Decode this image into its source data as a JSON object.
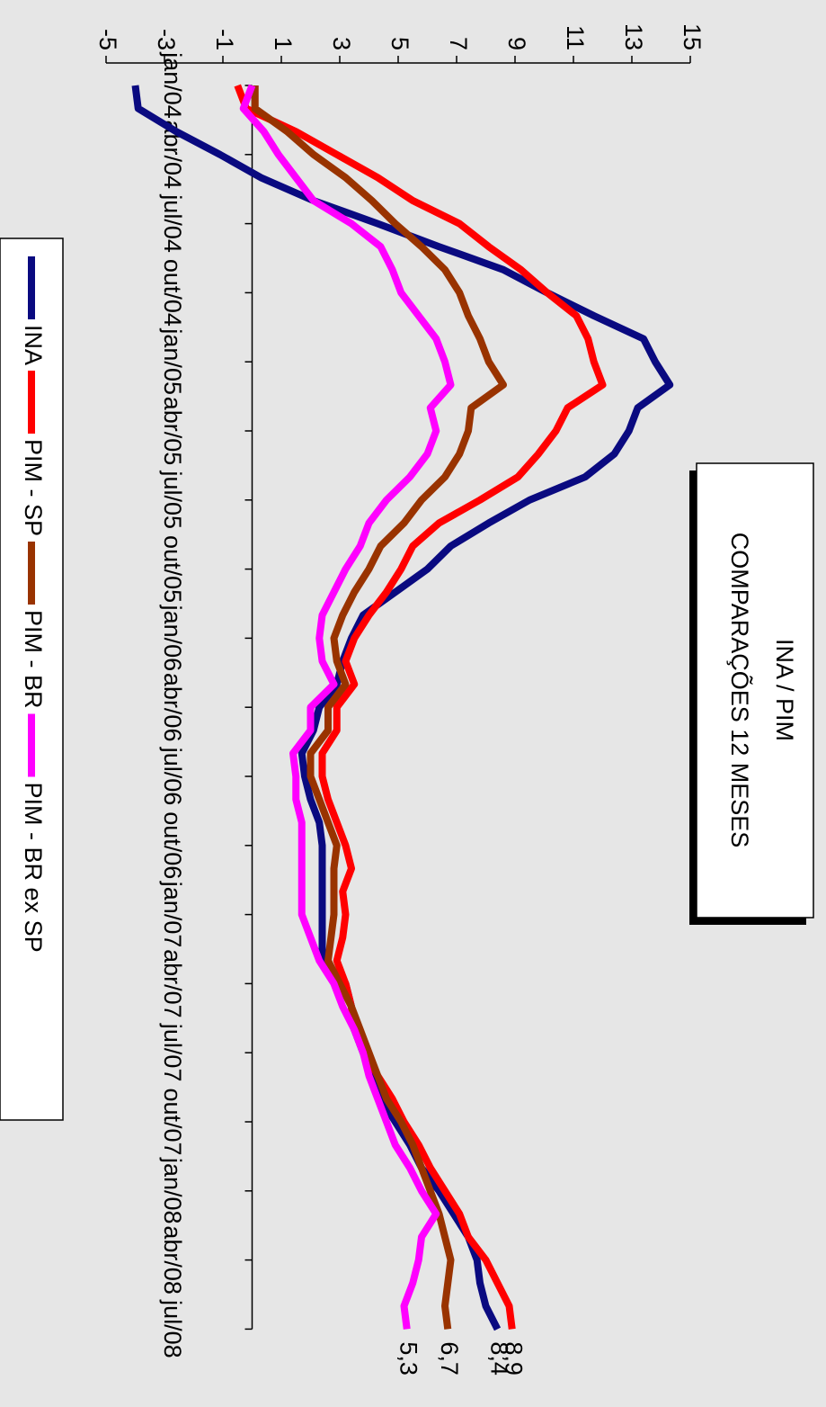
{
  "chart_data": {
    "type": "line",
    "title": "INA / PIM",
    "subtitle": "COMPARAÇÕES 12 MESES",
    "categories": [
      "jan/04",
      null,
      null,
      "abr/04",
      null,
      null,
      "jul/04",
      null,
      null,
      "out/04",
      null,
      null,
      "jan/05",
      null,
      null,
      "abr/05",
      null,
      null,
      "jul/05",
      null,
      null,
      "out/05",
      null,
      null,
      "jan/06",
      null,
      null,
      "abr/06",
      null,
      null,
      "jul/06",
      null,
      null,
      "out/06",
      null,
      null,
      "jan/07",
      null,
      null,
      "abr/07",
      null,
      null,
      "jul/07",
      null,
      null,
      "out/07",
      null,
      null,
      "jan/08",
      null,
      null,
      "abr/08",
      null,
      null,
      "jul/08"
    ],
    "series": [
      {
        "name": "INA",
        "color": "#0a0a80",
        "values": [
          -4.0,
          -3.9,
          -2.6,
          -1.1,
          0.3,
          2.1,
          4.3,
          6.4,
          8.6,
          10.1,
          11.7,
          13.4,
          13.8,
          14.3,
          13.2,
          12.9,
          12.4,
          11.4,
          9.5,
          8.1,
          6.8,
          6.0,
          4.9,
          3.8,
          3.4,
          3.1,
          2.9,
          2.3,
          2.1,
          1.7,
          1.8,
          2.0,
          2.3,
          2.4,
          2.4,
          2.4,
          2.4,
          2.4,
          2.4,
          3.2,
          3.4,
          3.5,
          3.8,
          4.1,
          4.4,
          4.9,
          5.4,
          5.8,
          6.4,
          6.9,
          7.4,
          7.7,
          7.8,
          8.0,
          8.4
        ],
        "value_labels": [
          null,
          null,
          null,
          null,
          null,
          null,
          null,
          null,
          null,
          null,
          null,
          null,
          null,
          null,
          null,
          null,
          null,
          null,
          null,
          null,
          null,
          null,
          null,
          null,
          null,
          null,
          null,
          null,
          null,
          null,
          null,
          null,
          null,
          null,
          null,
          null,
          null,
          null,
          null,
          null,
          null,
          null,
          null,
          null,
          null,
          null,
          null,
          null,
          null,
          null,
          null,
          null,
          null,
          null,
          "8,4"
        ]
      },
      {
        "name": "PIM - SP",
        "color": "#ff0000",
        "values": [
          -0.5,
          -0.2,
          1.5,
          2.9,
          4.3,
          5.5,
          7.1,
          8.1,
          9.2,
          10.1,
          11.1,
          11.5,
          11.7,
          12.0,
          10.8,
          10.4,
          9.8,
          9.1,
          7.8,
          6.4,
          5.5,
          5.1,
          4.6,
          4.0,
          3.5,
          3.2,
          3.5,
          2.9,
          2.9,
          2.4,
          2.4,
          2.6,
          2.9,
          3.2,
          3.4,
          3.1,
          3.2,
          3.1,
          2.9,
          3.2,
          3.4,
          3.5,
          3.9,
          4.3,
          4.8,
          5.2,
          5.7,
          6.1,
          6.6,
          7.1,
          7.4,
          8.0,
          8.4,
          8.8,
          8.9
        ],
        "value_labels": [
          null,
          null,
          null,
          null,
          null,
          null,
          null,
          null,
          null,
          null,
          null,
          null,
          null,
          null,
          null,
          null,
          null,
          null,
          null,
          null,
          null,
          null,
          null,
          null,
          null,
          null,
          null,
          null,
          null,
          null,
          null,
          null,
          null,
          null,
          null,
          null,
          null,
          null,
          null,
          null,
          null,
          null,
          null,
          null,
          null,
          null,
          null,
          null,
          null,
          null,
          null,
          null,
          null,
          null,
          "8,9"
        ]
      },
      {
        "name": "PIM - BR",
        "color": "#993300",
        "values": [
          0.1,
          0.1,
          1.2,
          2.1,
          3.2,
          4.1,
          4.9,
          5.8,
          6.6,
          7.1,
          7.4,
          7.8,
          8.1,
          8.6,
          7.5,
          7.4,
          7.1,
          6.6,
          5.8,
          5.2,
          4.4,
          4.0,
          3.5,
          3.1,
          2.8,
          2.9,
          3.2,
          2.6,
          2.6,
          2.0,
          2.0,
          2.3,
          2.6,
          2.9,
          2.8,
          2.8,
          2.8,
          2.7,
          2.6,
          3.0,
          3.4,
          3.7,
          4.0,
          4.3,
          4.6,
          5.1,
          5.5,
          5.8,
          6.1,
          6.4,
          6.6,
          6.8,
          6.7,
          6.6,
          6.7
        ],
        "value_labels": [
          null,
          null,
          null,
          null,
          null,
          null,
          null,
          null,
          null,
          null,
          null,
          null,
          null,
          null,
          null,
          null,
          null,
          null,
          null,
          null,
          null,
          null,
          null,
          null,
          null,
          null,
          null,
          null,
          null,
          null,
          null,
          null,
          null,
          null,
          null,
          null,
          null,
          null,
          null,
          null,
          null,
          null,
          null,
          null,
          null,
          null,
          null,
          null,
          null,
          null,
          null,
          null,
          null,
          null,
          "6,7"
        ]
      },
      {
        "name": "PIM - BR ex SP",
        "color": "#ff00ff",
        "values": [
          0.0,
          -0.3,
          0.4,
          0.9,
          1.5,
          2.1,
          3.4,
          4.4,
          4.8,
          5.1,
          5.7,
          6.3,
          6.6,
          6.8,
          6.1,
          6.3,
          6.0,
          5.4,
          4.6,
          4.0,
          3.7,
          3.2,
          2.8,
          2.4,
          2.3,
          2.4,
          2.8,
          2.0,
          2.0,
          1.4,
          1.5,
          1.5,
          1.7,
          1.7,
          1.7,
          1.7,
          1.7,
          2.0,
          2.3,
          2.8,
          3.1,
          3.5,
          3.8,
          4.0,
          4.3,
          4.6,
          4.9,
          5.4,
          5.8,
          6.3,
          5.8,
          5.7,
          5.5,
          5.2,
          5.3
        ],
        "value_labels": [
          null,
          null,
          null,
          null,
          null,
          null,
          null,
          null,
          null,
          null,
          null,
          null,
          null,
          null,
          null,
          null,
          null,
          null,
          null,
          null,
          null,
          null,
          null,
          null,
          null,
          null,
          null,
          null,
          null,
          null,
          null,
          null,
          null,
          null,
          null,
          null,
          null,
          null,
          null,
          null,
          null,
          null,
          null,
          null,
          null,
          null,
          null,
          null,
          null,
          null,
          null,
          null,
          null,
          null,
          "5,3"
        ]
      }
    ],
    "ylim": [
      -5,
      15
    ],
    "yticks": [
      -5,
      -3,
      -1,
      1,
      3,
      5,
      7,
      9,
      11,
      13,
      15
    ],
    "rotated": true,
    "legend": "bottom"
  }
}
